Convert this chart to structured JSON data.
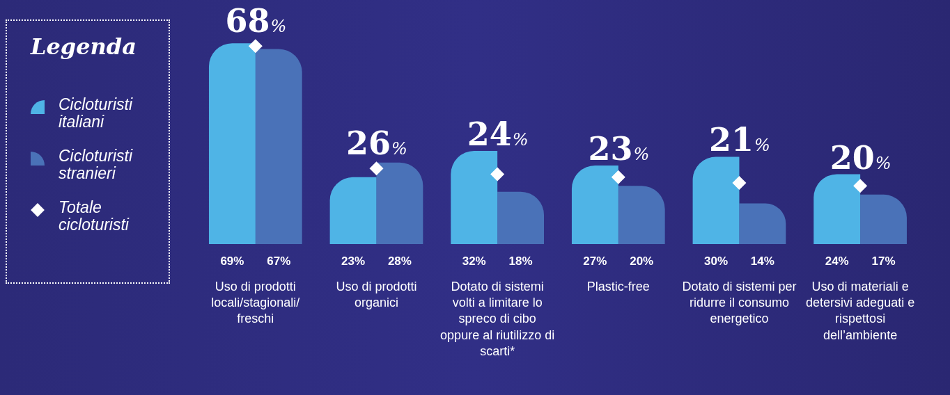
{
  "chart_data": {
    "type": "bar",
    "legend_title": "Legenda",
    "legend": "left",
    "grid": false,
    "categories": [
      "Uso di prodotti locali/stagionali/ freschi",
      "Uso di prodotti organici",
      "Dotato di sistemi volti a limitare lo spreco di cibo oppure al riutilizzo di scarti*",
      "Plastic-free",
      "Dotato di sistemi per ridurre il consumo energetico",
      "Uso di materiali e detersivi adeguati e rispettosi dell’ambiente"
    ],
    "series": [
      {
        "name": "Cicloturisti italiani",
        "color": "#4fb4e6",
        "values": [
          69,
          23,
          32,
          27,
          30,
          24
        ],
        "value_labels": [
          "69%",
          "23%",
          "32%",
          "27%",
          "30%",
          "24%"
        ]
      },
      {
        "name": "Cicloturisti stranieri",
        "color": "#4a72b8",
        "values": [
          67,
          28,
          18,
          20,
          14,
          17
        ],
        "value_labels": [
          "67%",
          "28%",
          "18%",
          "20%",
          "14%",
          "17%"
        ]
      },
      {
        "name": "Totale cicloturisti",
        "type": "scatter",
        "marker": "diamond",
        "color": "#ffffff",
        "x": [
          "Uso di prodotti locali/stagionali/ freschi",
          "Uso di prodotti organici",
          "Dotato di sistemi volti a limitare lo spreco di cibo oppure al riutilizzo di scarti*",
          "Plastic-free",
          "Dotato di sistemi per ridurre il consumo energetico",
          "Uso di materiali e detersivi adeguati e rispettosi dell’ambiente"
        ],
        "values": [
          68,
          26,
          24,
          23,
          21,
          20
        ],
        "value_labels": [
          "68%",
          "26%",
          "24%",
          "23%",
          "21%",
          "20%"
        ]
      }
    ]
  }
}
